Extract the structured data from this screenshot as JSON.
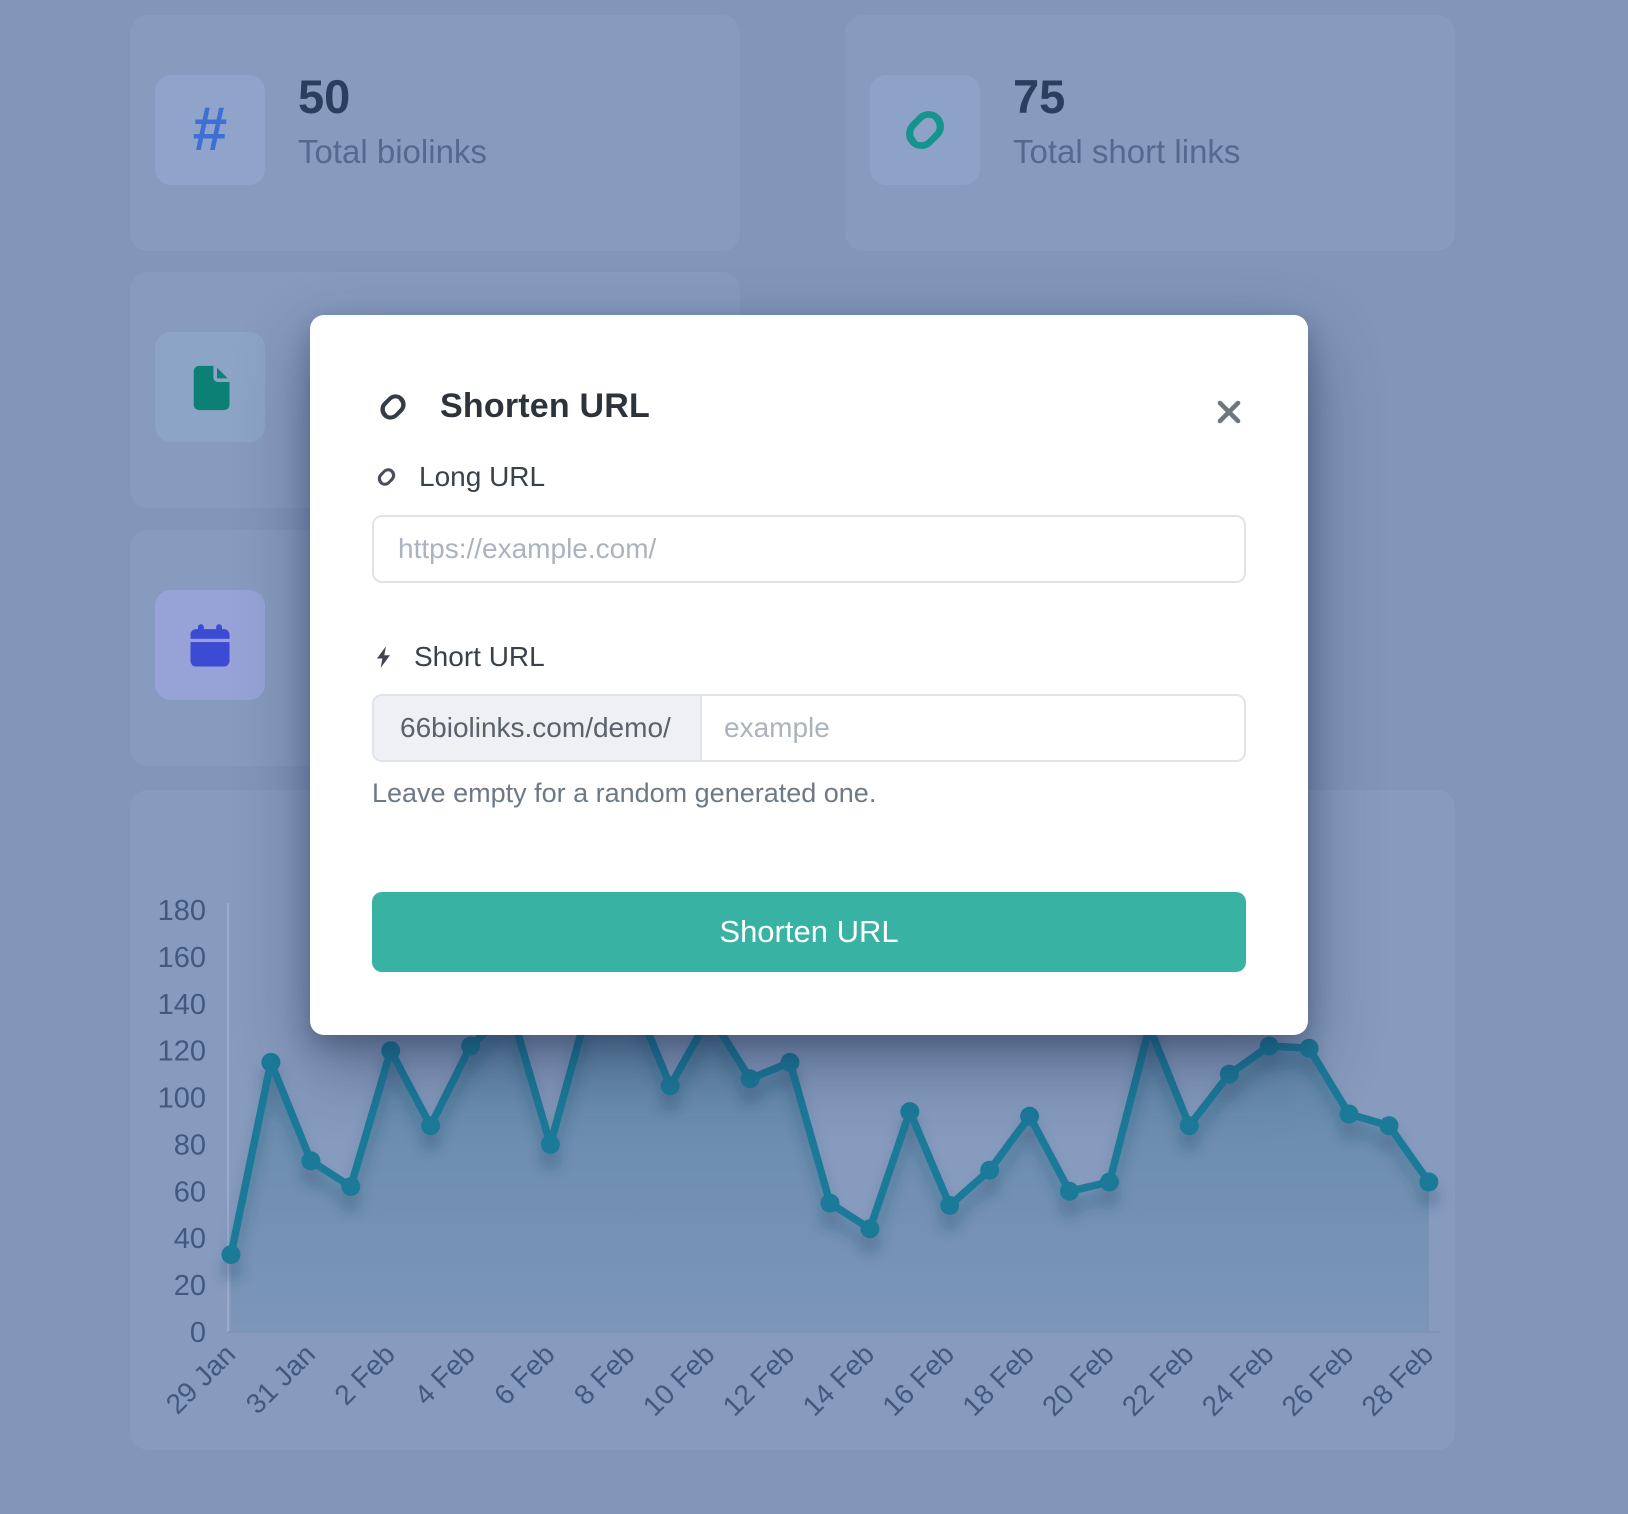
{
  "page": {
    "backdrop_color": "#8196b9"
  },
  "stats": [
    {
      "value": "50",
      "label": "Total biolinks",
      "icon": "hash-icon",
      "glyph": "#",
      "icon_color": "#3e6fd2"
    },
    {
      "value": "75",
      "label": "Total short links",
      "icon": "link-icon",
      "icon_color": "#13948e"
    }
  ],
  "side_cards": [
    {
      "icon": "file-icon",
      "icon_color": "#0d8076"
    },
    {
      "icon": "calendar-icon",
      "icon_color": "#3b4bd4"
    }
  ],
  "modal": {
    "title": "Shorten URL",
    "long_url_label": "Long URL",
    "long_url_placeholder": "https://example.com/",
    "short_url_label": "Short URL",
    "short_url_prefix": "66biolinks.com/demo/",
    "short_url_placeholder": "example",
    "help_text": "Leave empty for a random generated one.",
    "submit_label": "Shorten URL",
    "accent_color": "#38b2a3"
  },
  "chart_data": {
    "type": "line",
    "categories": [
      "29 Jan",
      "30 Jan",
      "31 Jan",
      "1 Feb",
      "2 Feb",
      "3 Feb",
      "4 Feb",
      "5 Feb",
      "6 Feb",
      "7 Feb",
      "8 Feb",
      "9 Feb",
      "10 Feb",
      "11 Feb",
      "12 Feb",
      "13 Feb",
      "14 Feb",
      "15 Feb",
      "16 Feb",
      "17 Feb",
      "18 Feb",
      "19 Feb",
      "20 Feb",
      "21 Feb",
      "22 Feb",
      "23 Feb",
      "24 Feb",
      "25 Feb",
      "26 Feb",
      "27 Feb",
      "28 Feb"
    ],
    "values": [
      33,
      115,
      73,
      62,
      120,
      88,
      122,
      138,
      80,
      142,
      146,
      105,
      135,
      108,
      115,
      55,
      44,
      94,
      54,
      69,
      92,
      60,
      64,
      130,
      88,
      110,
      122,
      121,
      93,
      88,
      64
    ],
    "tick_labels": [
      "29 Jan",
      "31 Jan",
      "2 Feb",
      "4 Feb",
      "6 Feb",
      "8 Feb",
      "10 Feb",
      "12 Feb",
      "14 Feb",
      "16 Feb",
      "18 Feb",
      "20 Feb",
      "22 Feb",
      "24 Feb",
      "26 Feb",
      "28 Feb"
    ],
    "ylim": [
      0,
      180
    ],
    "ytick_step": 20,
    "grid": false,
    "legend": false,
    "line_color": "#1d7a99",
    "fill_color": "#186480",
    "axis_label_color": "#42597f"
  }
}
